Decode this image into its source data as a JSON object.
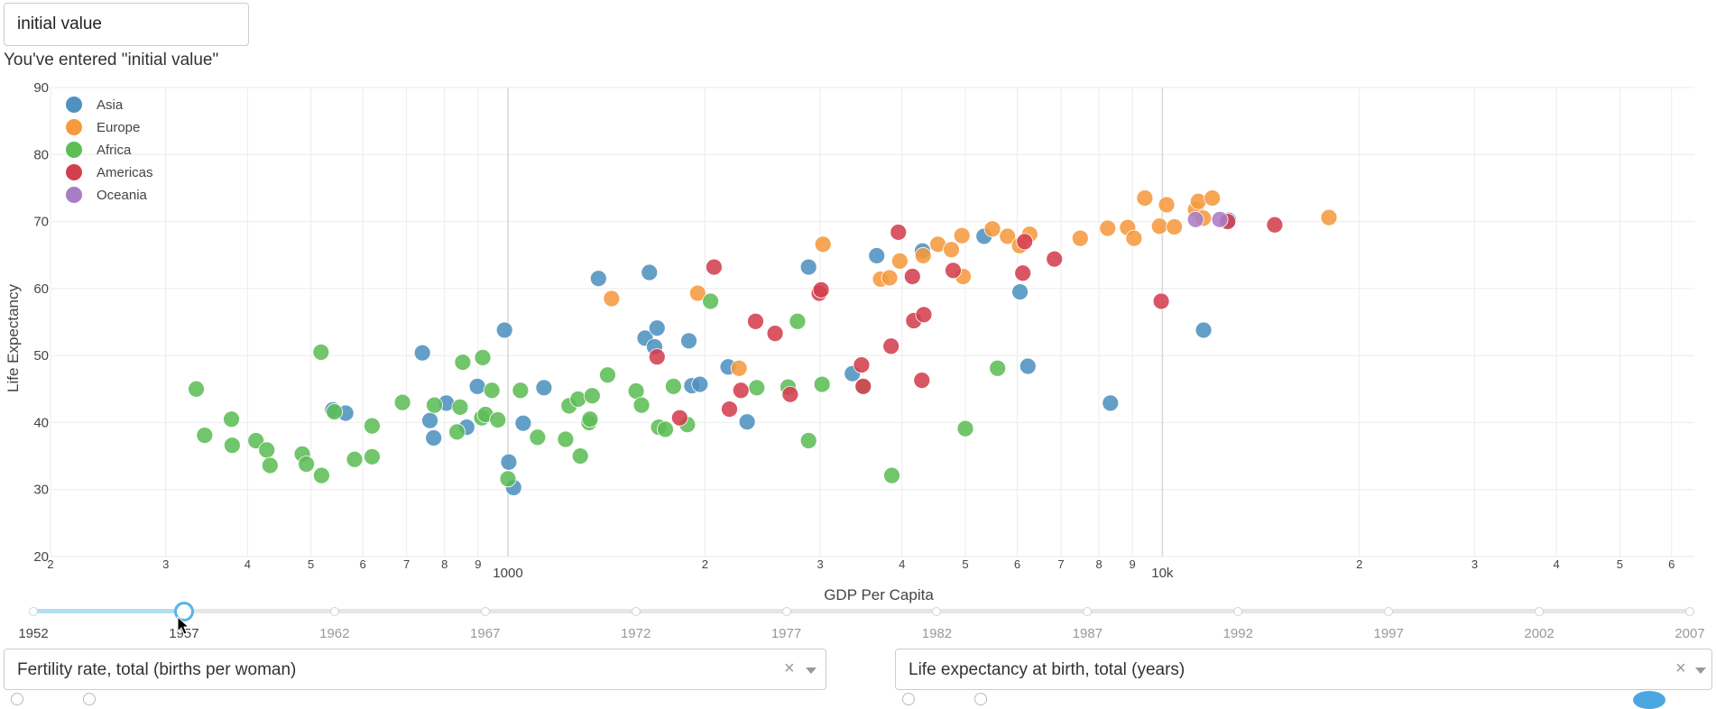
{
  "input": {
    "value": "initial value"
  },
  "echo_text": "You've entered \"initial value\"",
  "colors": {
    "Asia": "#4f92bf",
    "Europe": "#f59a3f",
    "Africa": "#5dbd57",
    "Americas": "#d43f4e",
    "Oceania": "#a97dc6"
  },
  "chart_data": {
    "type": "scatter",
    "xlabel": "GDP Per Capita",
    "ylabel": "Life Expectancy",
    "x_scale": "log",
    "xlim": [
      200,
      65000
    ],
    "ylim": [
      20,
      90
    ],
    "yticks": [
      20,
      30,
      40,
      50,
      60,
      70,
      80,
      90
    ],
    "xtick_labels": [
      {
        "value": 200,
        "label": "2",
        "major": false
      },
      {
        "value": 300,
        "label": "3",
        "major": false
      },
      {
        "value": 400,
        "label": "4",
        "major": false
      },
      {
        "value": 500,
        "label": "5",
        "major": false
      },
      {
        "value": 600,
        "label": "6",
        "major": false
      },
      {
        "value": 700,
        "label": "7",
        "major": false
      },
      {
        "value": 800,
        "label": "8",
        "major": false
      },
      {
        "value": 900,
        "label": "9",
        "major": false
      },
      {
        "value": 1000,
        "label": "1000",
        "major": true
      },
      {
        "value": 2000,
        "label": "2",
        "major": false
      },
      {
        "value": 3000,
        "label": "3",
        "major": false
      },
      {
        "value": 4000,
        "label": "4",
        "major": false
      },
      {
        "value": 5000,
        "label": "5",
        "major": false
      },
      {
        "value": 6000,
        "label": "6",
        "major": false
      },
      {
        "value": 7000,
        "label": "7",
        "major": false
      },
      {
        "value": 8000,
        "label": "8",
        "major": false
      },
      {
        "value": 9000,
        "label": "9",
        "major": false
      },
      {
        "value": 10000,
        "label": "10k",
        "major": true
      },
      {
        "value": 20000,
        "label": "2",
        "major": false
      },
      {
        "value": 30000,
        "label": "3",
        "major": false
      },
      {
        "value": 40000,
        "label": "4",
        "major": false
      },
      {
        "value": 50000,
        "label": "5",
        "major": false
      },
      {
        "value": 60000,
        "label": "6",
        "major": false
      }
    ],
    "legend_position": "top-left",
    "grid": true,
    "series": [
      {
        "name": "Asia",
        "points": [
          [
            540,
            41.9
          ],
          [
            565,
            41.4
          ],
          [
            740,
            50.4
          ],
          [
            760,
            40.3
          ],
          [
            770,
            37.7
          ],
          [
            805,
            42.9
          ],
          [
            865,
            39.3
          ],
          [
            898,
            45.4
          ],
          [
            988,
            53.8
          ],
          [
            1003,
            34.1
          ],
          [
            1020,
            30.3
          ],
          [
            1055,
            39.9
          ],
          [
            1135,
            45.2
          ],
          [
            1375,
            61.5
          ],
          [
            1620,
            52.6
          ],
          [
            1645,
            62.4
          ],
          [
            1675,
            51.3
          ],
          [
            1690,
            54.1
          ],
          [
            1890,
            52.2
          ],
          [
            1910,
            45.5
          ],
          [
            1965,
            45.7
          ],
          [
            2170,
            48.3
          ],
          [
            2320,
            40.1
          ],
          [
            2880,
            63.2
          ],
          [
            3360,
            47.3
          ],
          [
            3660,
            64.9
          ],
          [
            4300,
            65.6
          ],
          [
            5340,
            67.8
          ],
          [
            6060,
            59.5
          ],
          [
            6230,
            48.4
          ],
          [
            8330,
            42.9
          ],
          [
            11560,
            53.8
          ],
          [
            12620,
            70.2
          ]
        ]
      },
      {
        "name": "Europe",
        "points": [
          [
            1440,
            58.5
          ],
          [
            1950,
            59.3
          ],
          [
            2255,
            48.1
          ],
          [
            3030,
            66.6
          ],
          [
            3710,
            61.4
          ],
          [
            3830,
            61.6
          ],
          [
            3970,
            64.1
          ],
          [
            4310,
            64.9
          ],
          [
            4540,
            66.6
          ],
          [
            4760,
            65.8
          ],
          [
            4960,
            61.8
          ],
          [
            4940,
            67.9
          ],
          [
            5500,
            68.9
          ],
          [
            5800,
            67.8
          ],
          [
            6050,
            66.4
          ],
          [
            6270,
            68.1
          ],
          [
            7490,
            67.5
          ],
          [
            8250,
            69.0
          ],
          [
            8850,
            69.1
          ],
          [
            9050,
            67.5
          ],
          [
            9400,
            73.5
          ],
          [
            9900,
            69.3
          ],
          [
            10150,
            72.5
          ],
          [
            10430,
            69.2
          ],
          [
            11240,
            71.8
          ],
          [
            11350,
            73.0
          ],
          [
            11550,
            70.5
          ],
          [
            11920,
            73.5
          ],
          [
            17970,
            70.6
          ]
        ]
      },
      {
        "name": "Africa",
        "points": [
          [
            334,
            45.0
          ],
          [
            344,
            38.1
          ],
          [
            378,
            40.5
          ],
          [
            379,
            36.6
          ],
          [
            412,
            37.3
          ],
          [
            428,
            35.9
          ],
          [
            433,
            33.6
          ],
          [
            485,
            35.3
          ],
          [
            492,
            33.8
          ],
          [
            518,
            50.5
          ],
          [
            519,
            32.1
          ],
          [
            543,
            41.6
          ],
          [
            583,
            34.5
          ],
          [
            620,
            34.9
          ],
          [
            620,
            39.5
          ],
          [
            690,
            43.0
          ],
          [
            772,
            42.6
          ],
          [
            836,
            38.6
          ],
          [
            845,
            42.3
          ],
          [
            853,
            49.0
          ],
          [
            912,
            40.7
          ],
          [
            915,
            49.7
          ],
          [
            924,
            41.2
          ],
          [
            945,
            44.8
          ],
          [
            965,
            40.4
          ],
          [
            1000,
            31.6
          ],
          [
            1045,
            44.8
          ],
          [
            1110,
            37.8
          ],
          [
            1225,
            37.5
          ],
          [
            1240,
            42.5
          ],
          [
            1280,
            43.5
          ],
          [
            1290,
            35.0
          ],
          [
            1330,
            40.0
          ],
          [
            1335,
            40.5
          ],
          [
            1345,
            44.0
          ],
          [
            1420,
            47.1
          ],
          [
            1570,
            44.7
          ],
          [
            1600,
            42.6
          ],
          [
            1700,
            39.3
          ],
          [
            1740,
            39.0
          ],
          [
            1790,
            45.4
          ],
          [
            1880,
            39.7
          ],
          [
            2040,
            58.1
          ],
          [
            2400,
            45.2
          ],
          [
            2680,
            45.3
          ],
          [
            2770,
            55.1
          ],
          [
            2880,
            37.3
          ],
          [
            3020,
            45.7
          ],
          [
            3490,
            45.3
          ],
          [
            3860,
            32.1
          ],
          [
            5000,
            39.1
          ],
          [
            5600,
            48.1
          ]
        ]
      },
      {
        "name": "Americas",
        "points": [
          [
            1690,
            49.8
          ],
          [
            1830,
            40.7
          ],
          [
            2065,
            63.2
          ],
          [
            2180,
            42.0
          ],
          [
            2270,
            44.8
          ],
          [
            2390,
            55.1
          ],
          [
            2560,
            53.3
          ],
          [
            2700,
            44.2
          ],
          [
            2990,
            59.3
          ],
          [
            3010,
            59.8
          ],
          [
            3470,
            48.6
          ],
          [
            3490,
            45.4
          ],
          [
            3850,
            51.4
          ],
          [
            3950,
            68.4
          ],
          [
            4150,
            61.8
          ],
          [
            4170,
            55.2
          ],
          [
            4290,
            46.3
          ],
          [
            4320,
            56.1
          ],
          [
            4790,
            62.7
          ],
          [
            6120,
            62.3
          ],
          [
            6160,
            67.0
          ],
          [
            6840,
            64.4
          ],
          [
            9960,
            58.1
          ],
          [
            12580,
            70.0
          ],
          [
            14850,
            69.5
          ]
        ]
      },
      {
        "name": "Oceania",
        "points": [
          [
            11240,
            70.3
          ],
          [
            12240,
            70.3
          ]
        ]
      }
    ]
  },
  "slider": {
    "years": [
      "1952",
      "1957",
      "1962",
      "1967",
      "1972",
      "1977",
      "1982",
      "1987",
      "1992",
      "1997",
      "2002",
      "2007"
    ],
    "selected_index": 1
  },
  "dropdown_left": {
    "value": "Fertility rate, total (births per woman)",
    "clear_glyph": "×"
  },
  "dropdown_right": {
    "value": "Life expectancy at birth, total (years)",
    "clear_glyph": "×"
  }
}
